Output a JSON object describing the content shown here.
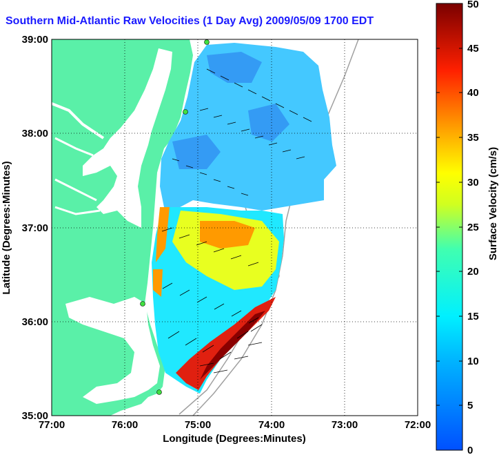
{
  "title": "Southern Mid-Atlantic Raw Velocities (1 Day Avg) 2009/05/09 1700 EDT",
  "map": {
    "xlabel": "Longitude (Degrees:Minutes)",
    "ylabel": "Latitude (Degrees:Minutes)",
    "x_ticks": [
      "77:00",
      "76:00",
      "75:00",
      "74:00",
      "73:00",
      "72:00"
    ],
    "y_ticks": [
      "39:00",
      "38:00",
      "37:00",
      "36:00",
      "35:00"
    ],
    "lon_range": [
      -77,
      -72
    ],
    "lat_range": [
      35,
      39
    ],
    "grid": "dotted",
    "land_color": "#5af0a8",
    "water_color": "#ffffff"
  },
  "colorbar": {
    "label": "Surface Velocity (cm/s)",
    "min": 0,
    "max": 50,
    "ticks": [
      "0",
      "5",
      "10",
      "15",
      "20",
      "25",
      "30",
      "35",
      "40",
      "45",
      "50"
    ]
  }
}
